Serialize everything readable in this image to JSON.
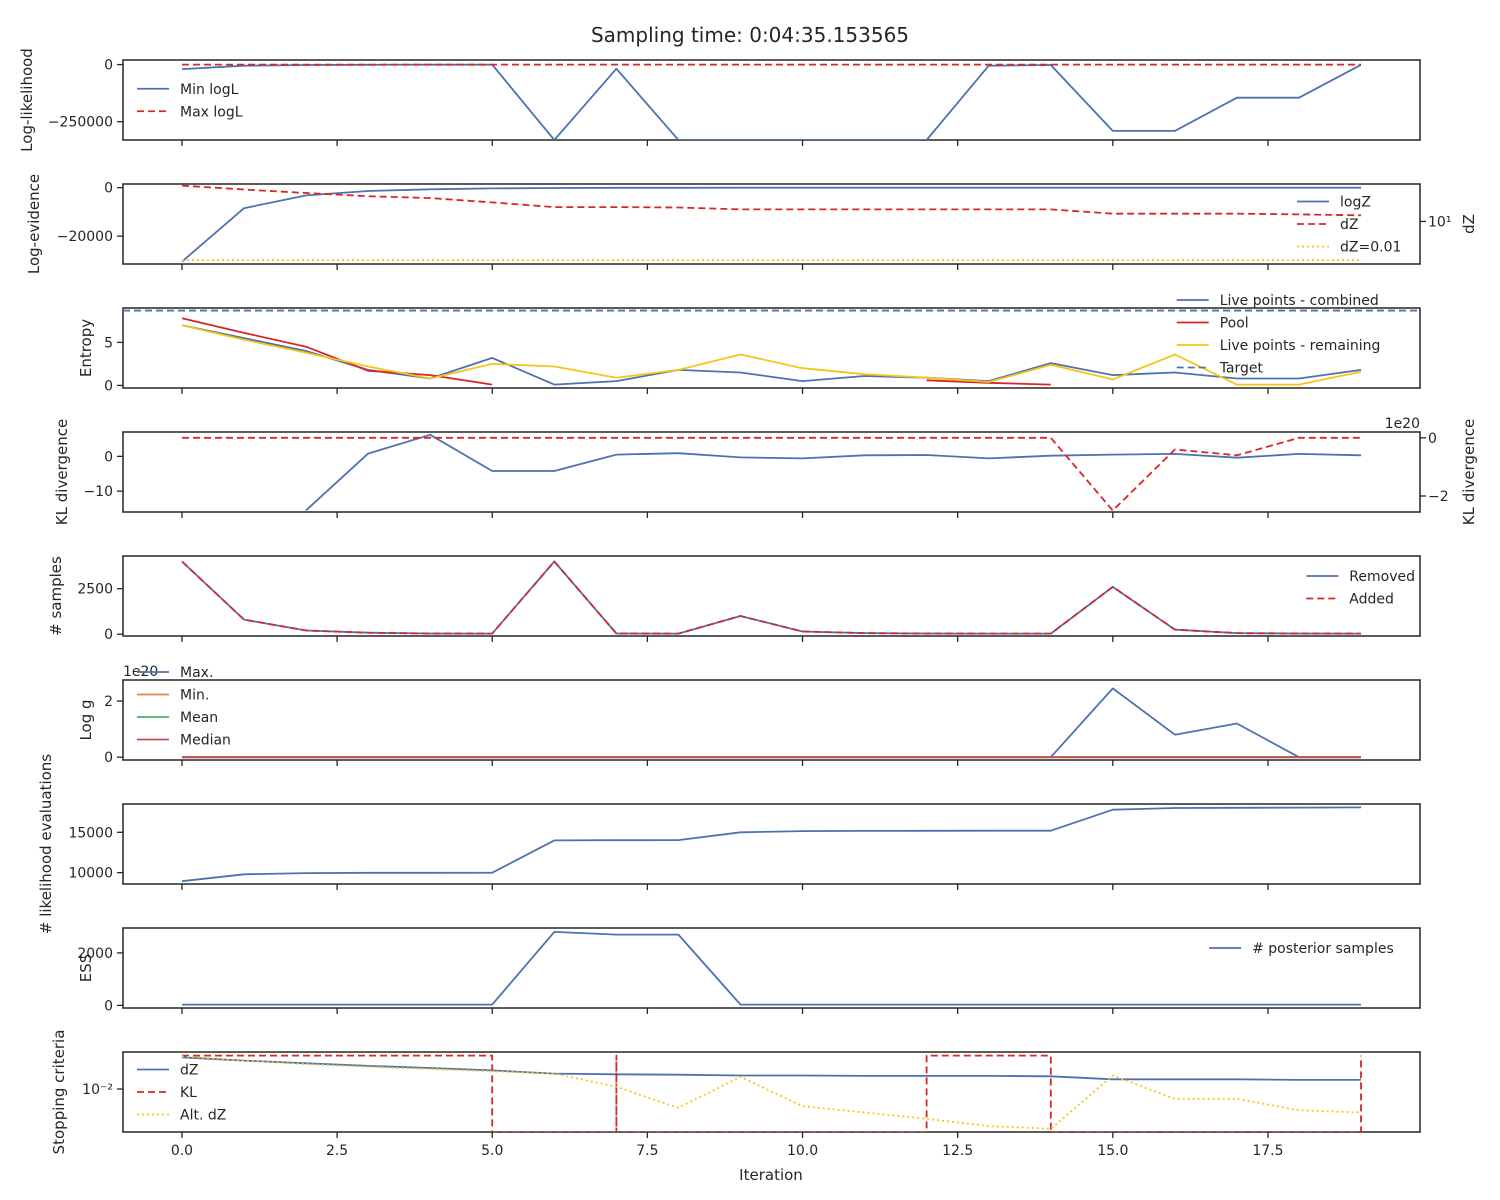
{
  "title": "Sampling time: 0:04:35.153565",
  "colors": {
    "blue": "#4c72b0",
    "red": "#d62728",
    "yellow": "#f5c518",
    "orange": "#dd8452",
    "green": "#55a868",
    "crimson": "#c44e52"
  },
  "x_axis": {
    "label": "Iteration",
    "ticks": [
      0,
      2.5,
      5,
      7.5,
      10,
      12.5,
      15,
      17.5
    ],
    "tick_labels": [
      "0.0",
      "2.5",
      "5.0",
      "7.5",
      "10.0",
      "12.5",
      "15.0",
      "17.5"
    ],
    "xlim": [
      -0.95,
      19.95
    ]
  },
  "chart_data": [
    {
      "type": "line",
      "ylabel": "Log-likelihood",
      "ylim": [
        -330000,
        20000
      ],
      "yticks": [
        0,
        -250000
      ],
      "ytick_labels": [
        "0",
        "−250000"
      ],
      "legend_loc": "center-left",
      "x": [
        0,
        1,
        2,
        3,
        4,
        5,
        6,
        7,
        8,
        9,
        10,
        11,
        12,
        13,
        14,
        15,
        16,
        17,
        18,
        19
      ],
      "series": [
        {
          "name": "Min logL",
          "color": "blue",
          "dash": "solid",
          "values": [
            -20000,
            -5000,
            -2000,
            -1000,
            -500,
            -300,
            -330000,
            -18000,
            -330000,
            -330000,
            -330000,
            -330000,
            -330000,
            -5000,
            -2000,
            -290000,
            -290000,
            -145000,
            -145000,
            -1000
          ]
        },
        {
          "name": "Max logL",
          "color": "red",
          "dash": "dashed",
          "values": [
            -10,
            -10,
            -10,
            -10,
            -10,
            -10,
            -10,
            -10,
            -10,
            -10,
            -10,
            -10,
            -10,
            -10,
            -10,
            -10,
            -10,
            -10,
            -10,
            -10
          ]
        }
      ]
    },
    {
      "type": "line",
      "ylabel": "Log-evidence",
      "ylim": [
        -31500,
        1500
      ],
      "yticks": [
        0,
        -20000
      ],
      "ytick_labels": [
        "0",
        "−20000"
      ],
      "right_axis": {
        "label": "dZ",
        "log": true,
        "lim": [
          0.005,
          8000
        ],
        "ticks": [
          10
        ],
        "tick_labels": [
          "10¹"
        ]
      },
      "legend_loc": "center-right",
      "x": [
        0,
        1,
        2,
        3,
        4,
        5,
        6,
        7,
        8,
        9,
        10,
        11,
        12,
        13,
        14,
        15,
        16,
        17,
        18,
        19
      ],
      "series": [
        {
          "name": "logZ",
          "color": "blue",
          "dash": "solid",
          "axis": "left",
          "values": [
            -30500,
            -8500,
            -3200,
            -1400,
            -700,
            -300,
            -150,
            -80,
            -50,
            -40,
            -40,
            -40,
            -40,
            -40,
            -40,
            -35,
            -35,
            -35,
            -35,
            -35
          ]
        },
        {
          "name": "dZ",
          "color": "red",
          "dash": "dashed",
          "axis": "right",
          "values": [
            6000,
            3000,
            1600,
            900,
            650,
            300,
            130,
            130,
            120,
            85,
            85,
            85,
            85,
            85,
            85,
            40,
            40,
            40,
            35,
            30
          ]
        },
        {
          "name": "dZ=0.01",
          "color": "yellow",
          "dash": "dotted",
          "axis": "right",
          "values": [
            0.01,
            0.01,
            0.01,
            0.01,
            0.01,
            0.01,
            0.01,
            0.01,
            0.01,
            0.01,
            0.01,
            0.01,
            0.01,
            0.01,
            0.01,
            0.01,
            0.01,
            0.01,
            0.01,
            0.01
          ]
        }
      ]
    },
    {
      "type": "line",
      "ylabel": "Entropy",
      "ylim": [
        -0.3,
        9.0
      ],
      "yticks": [
        0,
        5
      ],
      "ytick_labels": [
        "0",
        "5"
      ],
      "legend_loc": "top-right",
      "x": [
        0,
        1,
        2,
        3,
        4,
        5,
        6,
        7,
        8,
        9,
        10,
        11,
        12,
        13,
        14,
        15,
        16,
        17,
        18,
        19
      ],
      "series": [
        {
          "name": "Live points - combined",
          "color": "blue",
          "dash": "solid",
          "values": [
            7.0,
            5.5,
            4.0,
            1.8,
            0.8,
            3.2,
            0.1,
            0.5,
            1.8,
            1.5,
            0.5,
            1.1,
            0.9,
            0.5,
            2.6,
            1.2,
            1.5,
            0.8,
            0.8,
            1.8
          ]
        },
        {
          "name": "Pool",
          "color": "red",
          "dash": "solid",
          "values": [
            7.8,
            6.1,
            4.5,
            1.7,
            1.2,
            0.1,
            null,
            null,
            null,
            null,
            null,
            null,
            0.6,
            0.3,
            0.1,
            null,
            null,
            null,
            null,
            null
          ]
        },
        {
          "name": "Live points - remaining",
          "color": "yellow",
          "dash": "solid",
          "values": [
            7.0,
            5.3,
            3.8,
            2.2,
            0.8,
            2.5,
            2.2,
            0.9,
            1.8,
            3.6,
            2.0,
            1.3,
            0.9,
            0.4,
            2.4,
            0.7,
            3.6,
            0.1,
            0.1,
            1.6
          ]
        },
        {
          "name": "Target",
          "color": "blue",
          "dash": "dashed",
          "hline": 8.7
        }
      ]
    },
    {
      "type": "line",
      "ylabel": "KL divergence",
      "ylim": [
        -16.0,
        7.0
      ],
      "yticks": [
        0,
        -10
      ],
      "ytick_labels": [
        "0",
        "−10"
      ],
      "right_axis": {
        "label": "KL divergence",
        "log": false,
        "lim": [
          -2.55,
          0.2
        ],
        "ticks": [
          0,
          -2
        ],
        "tick_labels": [
          "0",
          "−2"
        ],
        "offset_text": "1e20"
      },
      "x": [
        0,
        1,
        2,
        3,
        4,
        5,
        6,
        7,
        8,
        9,
        10,
        11,
        12,
        13,
        14,
        15,
        16,
        17,
        18,
        19
      ],
      "series": [
        {
          "name": "",
          "color": "blue",
          "dash": "solid",
          "axis": "left",
          "values": [
            null,
            null,
            -15.5,
            0.8,
            6.2,
            -4.2,
            -4.2,
            0.5,
            0.9,
            -0.3,
            -0.6,
            0.3,
            0.4,
            -0.6,
            0.2,
            0.5,
            0.7,
            -0.4,
            0.7,
            0.3
          ]
        },
        {
          "name": "",
          "color": "red",
          "dash": "dashed",
          "axis": "right",
          "values": [
            0,
            0,
            0,
            0,
            0,
            0,
            0,
            0,
            0,
            0,
            0,
            0,
            0,
            0,
            0,
            -2.5,
            -0.4,
            -0.6,
            0,
            0
          ]
        }
      ]
    },
    {
      "type": "line",
      "ylabel": "# samples",
      "ylim": [
        -100,
        4300
      ],
      "yticks": [
        0,
        2500
      ],
      "ytick_labels": [
        "0",
        "2500"
      ],
      "legend_loc": "top-right",
      "x": [
        0,
        1,
        2,
        3,
        4,
        5,
        6,
        7,
        8,
        9,
        10,
        11,
        12,
        13,
        14,
        15,
        16,
        17,
        18,
        19
      ],
      "series": [
        {
          "name": "Removed",
          "color": "blue",
          "dash": "solid",
          "values": [
            4000,
            800,
            200,
            80,
            40,
            30,
            4000,
            40,
            30,
            1000,
            150,
            60,
            40,
            30,
            30,
            2600,
            250,
            60,
            40,
            30
          ]
        },
        {
          "name": "Added",
          "color": "red",
          "dash": "dashed",
          "values": [
            4000,
            800,
            200,
            80,
            40,
            30,
            4000,
            40,
            30,
            1000,
            150,
            60,
            40,
            30,
            30,
            2600,
            250,
            60,
            40,
            30
          ]
        }
      ]
    },
    {
      "type": "line",
      "ylabel": "Log g",
      "ylim": [
        -0.1,
        2.75
      ],
      "scale_note": "1e20",
      "yticks": [
        0,
        2
      ],
      "ytick_labels": [
        "0",
        "2"
      ],
      "legend_loc": "top-left",
      "x": [
        0,
        1,
        2,
        3,
        4,
        5,
        6,
        7,
        8,
        9,
        10,
        11,
        12,
        13,
        14,
        15,
        16,
        17,
        18,
        19
      ],
      "series": [
        {
          "name": "Max.",
          "color": "blue",
          "dash": "solid",
          "values": [
            0,
            0,
            0,
            0,
            0,
            0,
            0,
            0,
            0,
            0,
            0,
            0,
            0,
            0,
            0,
            2.45,
            0.8,
            1.2,
            0,
            0
          ]
        },
        {
          "name": "Min.",
          "color": "orange",
          "dash": "solid",
          "values": [
            0,
            0,
            0,
            0,
            0,
            0,
            0,
            0,
            0,
            0,
            0,
            0,
            0,
            0,
            0,
            0,
            0,
            0,
            0,
            0
          ]
        },
        {
          "name": "Mean",
          "color": "green",
          "dash": "solid",
          "values": [
            0,
            0,
            0,
            0,
            0,
            0,
            0,
            0,
            0,
            0,
            0,
            0,
            0,
            0,
            0,
            0,
            0,
            0,
            0,
            0
          ]
        },
        {
          "name": "Median",
          "color": "crimson",
          "dash": "solid",
          "values": [
            0,
            0,
            0,
            0,
            0,
            0,
            0,
            0,
            0,
            0,
            0,
            0,
            0,
            0,
            0,
            0,
            0,
            0,
            0,
            0
          ]
        }
      ]
    },
    {
      "type": "line",
      "ylabel": "# likelihood evaluations",
      "ylim": [
        8600,
        18500
      ],
      "yticks": [
        15000,
        10000
      ],
      "ytick_labels": [
        "15000",
        "10000"
      ],
      "x": [
        0,
        1,
        2,
        3,
        4,
        5,
        6,
        7,
        8,
        9,
        10,
        11,
        12,
        13,
        14,
        15,
        16,
        17,
        18,
        19
      ],
      "series": [
        {
          "name": "",
          "color": "blue",
          "dash": "solid",
          "values": [
            8950,
            9800,
            9950,
            9980,
            9990,
            10000,
            14000,
            14020,
            14030,
            15000,
            15150,
            15170,
            15180,
            15190,
            15200,
            17800,
            18000,
            18030,
            18050,
            18080
          ]
        }
      ]
    },
    {
      "type": "line",
      "ylabel": "ESS",
      "ylim": [
        -100,
        2950
      ],
      "yticks": [
        2000,
        0
      ],
      "ytick_labels": [
        "2000",
        "0"
      ],
      "legend_loc": "top-right",
      "x": [
        0,
        1,
        2,
        3,
        4,
        5,
        6,
        7,
        8,
        9,
        10,
        11,
        12,
        13,
        14,
        15,
        16,
        17,
        18,
        19
      ],
      "series": [
        {
          "name": "# posterior samples",
          "color": "blue",
          "dash": "solid",
          "values": [
            30,
            30,
            30,
            30,
            30,
            30,
            2800,
            2700,
            2700,
            30,
            30,
            30,
            30,
            30,
            30,
            30,
            30,
            30,
            30,
            30
          ]
        }
      ]
    },
    {
      "type": "line",
      "ylabel": "Stopping criteria",
      "ylog": true,
      "ylim": [
        0.00031,
        0.2
      ],
      "yticks": [
        0.01
      ],
      "ytick_labels": [
        "10⁻²"
      ],
      "legend_loc": "center-left",
      "series": [
        {
          "name": "dZ",
          "color": "blue",
          "dash": "solid",
          "x": [
            0,
            1,
            2,
            3,
            4,
            5,
            6,
            7,
            8,
            9,
            10,
            11,
            12,
            13,
            14,
            15,
            16,
            17,
            18,
            19
          ],
          "values": [
            0.13,
            0.1,
            0.08,
            0.065,
            0.055,
            0.045,
            0.035,
            0.033,
            0.032,
            0.03,
            0.03,
            0.029,
            0.029,
            0.029,
            0.028,
            0.022,
            0.022,
            0.022,
            0.021,
            0.021
          ]
        },
        {
          "name": "KL",
          "color": "red",
          "dash": "dashed",
          "x": [
            0,
            5,
            5,
            7,
            7,
            7,
            7,
            12,
            12,
            14,
            14,
            19,
            19
          ],
          "values": [
            0.15,
            0.15,
            0.0003,
            0.0003,
            0.15,
            0.0003,
            0.0003,
            0.0003,
            0.15,
            0.15,
            0.0003,
            0.0003,
            0.15
          ]
        },
        {
          "name": "Alt. dZ",
          "color": "yellow",
          "dash": "dotted",
          "x": [
            0,
            1,
            2,
            3,
            4,
            5,
            6,
            7,
            8,
            9,
            10,
            11,
            12,
            13,
            14,
            15,
            16,
            17,
            18,
            19
          ],
          "values": [
            0.14,
            0.1,
            0.075,
            0.06,
            0.05,
            0.042,
            0.035,
            0.012,
            0.0022,
            0.027,
            0.0025,
            0.0015,
            0.0009,
            0.0005,
            0.0004,
            0.03,
            0.0045,
            0.0045,
            0.0018,
            0.0015
          ]
        }
      ]
    }
  ]
}
